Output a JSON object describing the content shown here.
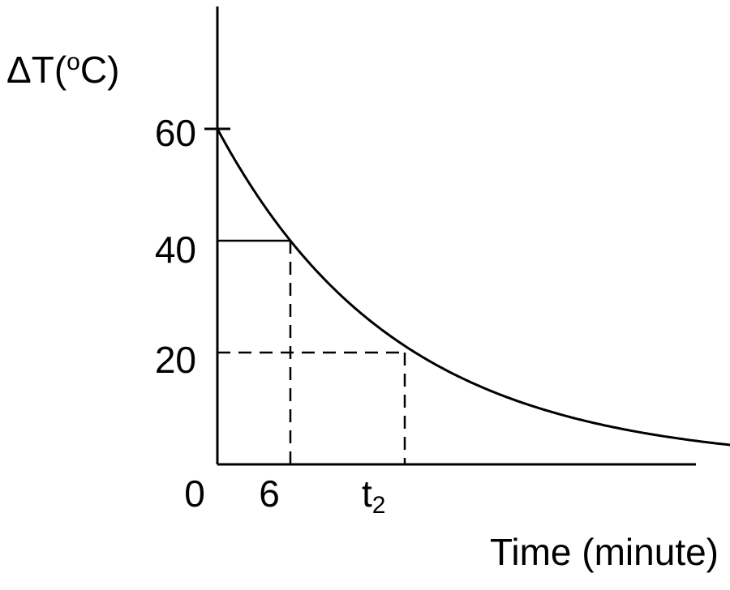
{
  "chart_data": {
    "type": "line",
    "title": "",
    "xlabel": "Time (minute)",
    "ylabel": {
      "delta": "Δ",
      "symbol": "T(",
      "superscript": "o",
      "unit": "C)"
    },
    "yticks": [
      "60",
      "40",
      "20"
    ],
    "xticks": {
      "origin": "0",
      "first": "6",
      "second_base": "t",
      "second_sub": "2"
    },
    "series": [
      {
        "curve": "exponential decay",
        "start": {
          "x": 0,
          "y": 60
        },
        "points": [
          {
            "x": 6,
            "y": 40
          },
          {
            "x": 15.4,
            "y": 20
          }
        ]
      }
    ],
    "guides": [
      {
        "y": 40,
        "x_end": 6,
        "horizontal_style": "solid",
        "vertical_style": "dashed"
      },
      {
        "y": 20,
        "x_end": 15.4,
        "horizontal_style": "dashed",
        "vertical_style": "dashed"
      }
    ],
    "xlim": [
      0,
      44
    ],
    "ylim": [
      0,
      75
    ],
    "grid": false,
    "legend": "none",
    "colors": {
      "line": "#000000",
      "background": "#ffffff"
    }
  }
}
